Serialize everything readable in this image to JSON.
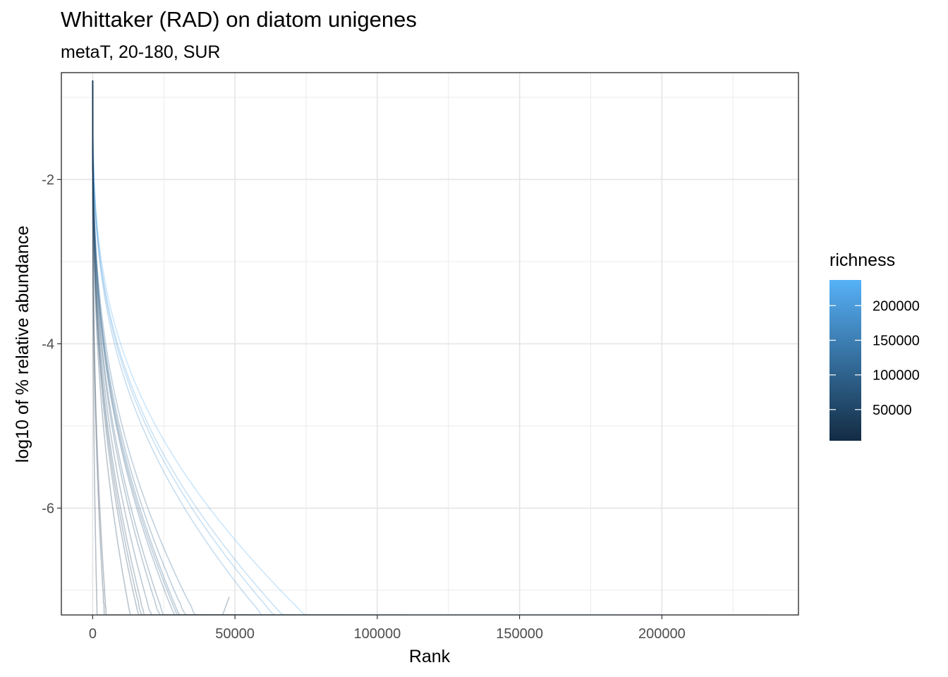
{
  "chart_data": {
    "type": "line",
    "title": "Whittaker (RAD) on diatom unigenes",
    "subtitle": "metaT, 20-180, SUR",
    "xlabel": "Rank",
    "ylabel": "log10 of % relative abundance",
    "xlim": [
      -11000,
      248000
    ],
    "ylim": [
      -7.3,
      -0.7
    ],
    "x_ticks": [
      0,
      50000,
      100000,
      150000,
      200000
    ],
    "x_tick_labels": [
      "0",
      "50000",
      "100000",
      "150000",
      "200000"
    ],
    "y_ticks": [
      -2,
      -4,
      -6
    ],
    "y_tick_labels": [
      "-2",
      "-4",
      "-6"
    ],
    "grid": true,
    "legend": {
      "title": "richness",
      "position": "right",
      "range": [
        5000,
        237000
      ],
      "ticks": [
        50000,
        100000,
        150000,
        200000
      ],
      "tick_labels": [
        "50000",
        "100000",
        "150000",
        "200000"
      ],
      "color_low": "#132B43",
      "color_high": "#56B1F7"
    },
    "series": [
      {
        "richness": 236000,
        "end_y": -6.93,
        "ext": 0,
        "steps": 16
      },
      {
        "richness": 210000,
        "end_y": -6.83,
        "ext": 0,
        "steps": 14
      },
      {
        "richness": 200000,
        "end_y": -6.75,
        "ext": 0,
        "steps": 14
      },
      {
        "richness": 184000,
        "end_y": -6.42,
        "ext": 0,
        "steps": 13
      },
      {
        "richness": 110000,
        "end_y": -6.15,
        "ext": 0,
        "steps": 8
      },
      {
        "richness": 100000,
        "end_y": -6.33,
        "ext": 0,
        "steps": 8
      },
      {
        "richness": 95000,
        "end_y": -6.68,
        "ext": 0,
        "steps": 8
      },
      {
        "richness": 91000,
        "end_y": -6.22,
        "ext": 0,
        "steps": 7
      },
      {
        "richness": 88000,
        "end_y": -6.3,
        "ext": 0,
        "steps": 7
      },
      {
        "richness": 77000,
        "end_y": -6.45,
        "ext": 0,
        "steps": 7
      },
      {
        "richness": 72000,
        "end_y": -6.3,
        "ext": 0,
        "steps": 6
      },
      {
        "richness": 63000,
        "end_y": -6.32,
        "ext": 0,
        "steps": 6
      },
      {
        "richness": 56000,
        "end_y": -6.38,
        "ext": 0,
        "steps": 5
      },
      {
        "richness": 52000,
        "end_y": -6.1,
        "ext": 0,
        "steps": 5
      },
      {
        "richness": 48000,
        "end_y": -7.08,
        "ext": 1,
        "steps": 0
      },
      {
        "richness": 40000,
        "end_y": -6.05,
        "ext": 0,
        "steps": 4
      },
      {
        "richness": 14000,
        "end_y": -5.35,
        "ext": 0,
        "steps": 3
      },
      {
        "richness": 12000,
        "end_y": -5.28,
        "ext": 0,
        "steps": 2
      },
      {
        "richness": 4500,
        "end_y": -5.15,
        "ext": 0,
        "steps": 0
      }
    ]
  }
}
